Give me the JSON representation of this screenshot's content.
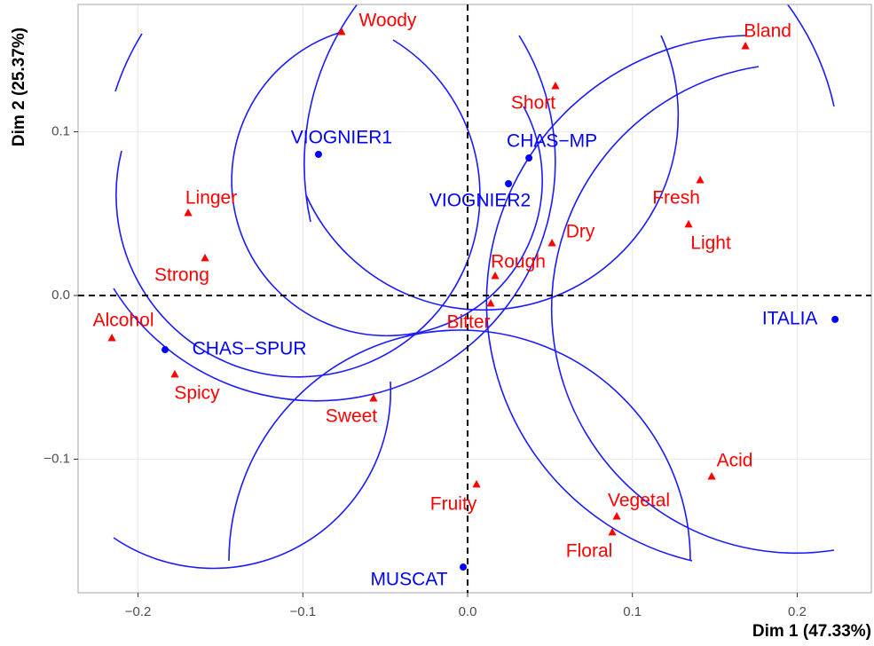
{
  "chart_data": {
    "type": "scatter",
    "x_label": "Dim 1 (47.33%)",
    "y_label": "Dim 2 (25.37%)",
    "xlim": [
      -0.2364,
      0.245
    ],
    "ylim": [
      -0.1816,
      0.1778
    ],
    "xticks": [
      {
        "value": -0.2,
        "label": "−0.2"
      },
      {
        "value": -0.1,
        "label": "−0.1"
      },
      {
        "value": 0,
        "label": "0.0"
      },
      0.1,
      0.2
    ],
    "yticks": [
      {
        "value": -0.1,
        "label": "−0.1"
      },
      {
        "value": 0,
        "label": "0.0"
      },
      0.1
    ],
    "grid": true,
    "series": [
      {
        "color": "#0000ff",
        "marker": "circle",
        "labels": [
          "VIOGNIER1",
          "CHAS−MP",
          "VIOGNIER2",
          "ITALIA",
          "CHAS−SPUR",
          "MUSCAT"
        ],
        "x": [
          -0.0905,
          0.0372,
          0.0248,
          0.223,
          -0.1836,
          -0.0027
        ],
        "values": [
          0.0862,
          0.084,
          0.0683,
          -0.0146,
          -0.0331,
          -0.1659
        ]
      },
      {
        "color": "#ff0000",
        "marker": "triangle",
        "labels": [
          "Woody",
          "Bland",
          "Short",
          "Fresh",
          "Light",
          "Linger",
          "Strong",
          "Dry",
          "Rough",
          "Bitter",
          "Alcohol",
          "Spicy",
          "Sweet",
          "Acid",
          "Fruity",
          "Vegetal",
          "Floral"
        ],
        "x": [
          -0.0765,
          0.1686,
          0.0533,
          0.1411,
          0.1341,
          -0.1696,
          -0.1594,
          0.0512,
          0.0167,
          0.014,
          -0.2159,
          -0.1777,
          -0.0571,
          0.1481,
          0.0054,
          0.0905,
          0.0878
        ],
        "values": [
          0.161,
          0.1523,
          0.1279,
          0.0705,
          0.0434,
          0.0504,
          0.0228,
          0.032,
          0.0119,
          -0.0049,
          -0.026,
          -0.0482,
          -0.0629,
          -0.1106,
          -0.1154,
          -0.135,
          -0.1447
        ]
      }
    ]
  }
}
